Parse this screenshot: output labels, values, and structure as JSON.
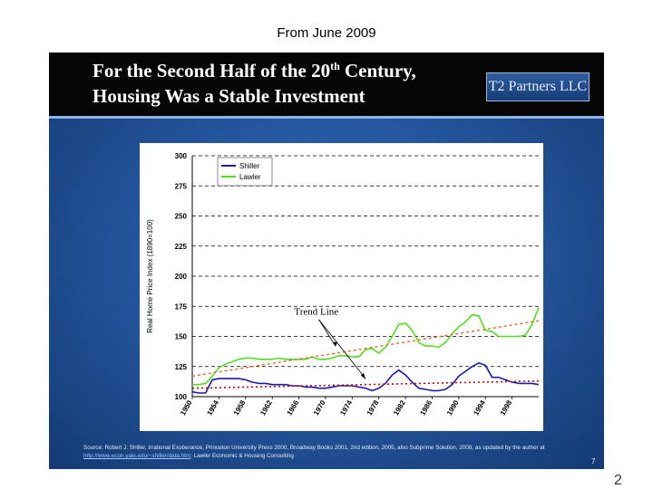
{
  "caption": "From June 2009",
  "page_number": "2",
  "slide": {
    "title_line1": "For the Second Half of the 20",
    "title_line1_sup": "th",
    "title_line1_end": " Century,",
    "title_line2": "Housing Was a Stable Investment",
    "logo_text": "T2 Partners LLC",
    "slide_number": "7",
    "source_part1": "Source: Robert J. Shiller, Irrational Exuberance, Princeton University Press 2000, Broadway Books 2001, 2nd edition, 2005, also Subprime Solution, 2008, as updated by the author at ",
    "source_link": "http://www.econ.yale.edu/~shiller/data.htm",
    "source_part2": "; Lawler Economic & Housing Consulting"
  },
  "colors": {
    "shiller": "#1a1aa8",
    "lawler": "#55dd22",
    "trend_shiller": "#d00000",
    "trend_lawler": "#e06a2a"
  },
  "chart_data": {
    "type": "line",
    "title": "",
    "ylabel": "Real Home Price Index (1890=100)",
    "xlabel": "",
    "ylim": [
      100,
      300
    ],
    "y_ticks": [
      100,
      125,
      150,
      175,
      200,
      225,
      250,
      275,
      300
    ],
    "xlim": [
      1950,
      2002
    ],
    "x_ticks": [
      1950,
      1954,
      1958,
      1962,
      1966,
      1970,
      1974,
      1978,
      1982,
      1986,
      1990,
      1994,
      1998
    ],
    "grid": "horizontal dashed",
    "legend_position": "top-left",
    "annotation": "Trend Line",
    "series": [
      {
        "name": "Shiller",
        "x": [
          1950,
          1951,
          1952,
          1953,
          1954,
          1955,
          1956,
          1957,
          1958,
          1959,
          1960,
          1961,
          1962,
          1963,
          1964,
          1965,
          1966,
          1967,
          1968,
          1969,
          1970,
          1971,
          1972,
          1973,
          1974,
          1975,
          1976,
          1977,
          1978,
          1979,
          1980,
          1981,
          1982,
          1983,
          1984,
          1985,
          1986,
          1987,
          1988,
          1989,
          1990,
          1991,
          1992,
          1993,
          1994,
          1995,
          1996,
          1997,
          1998,
          1999,
          2000,
          2001,
          2002
        ],
        "values": [
          104,
          103,
          103,
          114,
          115,
          115,
          115,
          115,
          114,
          112,
          111,
          111,
          110,
          110,
          110,
          109,
          109,
          108,
          108,
          107,
          107,
          108,
          109,
          109,
          109,
          108,
          107,
          105,
          107,
          111,
          118,
          122,
          118,
          112,
          107,
          106,
          105,
          105,
          106,
          110,
          117,
          121,
          125,
          128,
          126,
          116,
          116,
          114,
          112,
          111,
          111,
          111,
          110
        ]
      },
      {
        "name": "Lawler",
        "x": [
          1950,
          1951,
          1952,
          1953,
          1954,
          1955,
          1956,
          1957,
          1958,
          1959,
          1960,
          1961,
          1962,
          1963,
          1964,
          1965,
          1966,
          1967,
          1968,
          1969,
          1970,
          1971,
          1972,
          1973,
          1974,
          1975,
          1976,
          1977,
          1978,
          1979,
          1980,
          1981,
          1982,
          1983,
          1984,
          1985,
          1986,
          1987,
          1988,
          1989,
          1990,
          1991,
          1992,
          1993,
          1994,
          1995,
          1996,
          1997,
          1998,
          1999,
          2000,
          2001,
          2002
        ],
        "values": [
          110,
          110,
          111,
          117,
          124,
          127,
          129,
          131,
          132,
          132,
          131,
          131,
          131,
          132,
          131,
          131,
          131,
          131,
          133,
          131,
          131,
          132,
          134,
          134,
          133,
          133,
          139,
          140,
          136,
          141,
          150,
          160,
          161,
          155,
          145,
          142,
          142,
          141,
          145,
          152,
          158,
          162,
          168,
          167,
          155,
          154,
          150,
          150,
          150,
          150,
          151,
          160,
          174
        ]
      },
      {
        "name": "",
        "x": [
          1950,
          2002
        ],
        "values": [
          117,
          163
        ]
      },
      {
        "name": "",
        "x": [
          1950,
          2002
        ],
        "values": [
          107,
          113
        ]
      }
    ]
  }
}
